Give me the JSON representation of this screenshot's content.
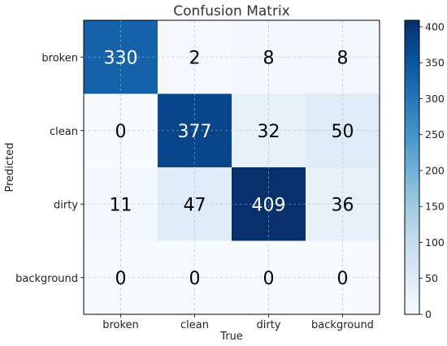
{
  "chart_data": {
    "type": "heatmap",
    "title": "Confusion Matrix",
    "xlabel": "True",
    "ylabel": "Predicted",
    "x_categories": [
      "broken",
      "clean",
      "dirty",
      "background"
    ],
    "y_categories": [
      "broken",
      "clean",
      "dirty",
      "background"
    ],
    "values": [
      [
        330,
        2,
        8,
        8
      ],
      [
        0,
        377,
        32,
        50
      ],
      [
        11,
        47,
        409,
        36
      ],
      [
        0,
        0,
        0,
        0
      ]
    ],
    "colorbar": {
      "range": [
        0,
        409
      ],
      "ticks": [
        0,
        50,
        100,
        150,
        200,
        250,
        300,
        350,
        400
      ],
      "colormap": [
        "#f7fbff",
        "#deebf7",
        "#c6dbef",
        "#9ecae1",
        "#6baed6",
        "#4292c6",
        "#2171b5",
        "#08519c",
        "#08306b"
      ]
    },
    "grid": true
  }
}
